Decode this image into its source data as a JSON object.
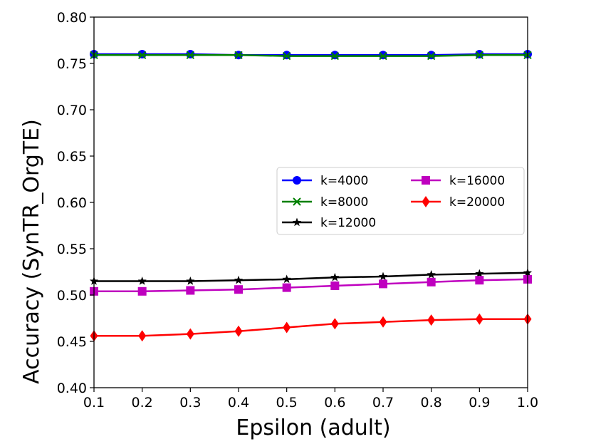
{
  "chart_data": {
    "type": "line",
    "xlabel": "Epsilon (adult)",
    "ylabel": "Accuracy  (SynTR_OrgTE)",
    "xlim": [
      0.1,
      1.0
    ],
    "ylim": [
      0.4,
      0.8
    ],
    "x": [
      0.1,
      0.2,
      0.3,
      0.4,
      0.5,
      0.6,
      0.7,
      0.8,
      0.9,
      1.0
    ],
    "x_ticks": [
      "0.1",
      "0.2",
      "0.3",
      "0.4",
      "0.5",
      "0.6",
      "0.7",
      "0.8",
      "0.9",
      "1.0"
    ],
    "y_ticks": [
      {
        "value": 0.4,
        "label": "0.40"
      },
      {
        "value": 0.45,
        "label": "0.45"
      },
      {
        "value": 0.5,
        "label": "0.50"
      },
      {
        "value": 0.55,
        "label": "0.55"
      },
      {
        "value": 0.6,
        "label": "0.60"
      },
      {
        "value": 0.65,
        "label": "0.65"
      },
      {
        "value": 0.7,
        "label": "0.70"
      },
      {
        "value": 0.75,
        "label": "0.75"
      },
      {
        "value": 0.8,
        "label": "0.80"
      }
    ],
    "grid": false,
    "legend_position": "center-right",
    "series": [
      {
        "name": "k=4000",
        "color": "#0000ff",
        "marker": "circle",
        "values": [
          0.76,
          0.76,
          0.76,
          0.759,
          0.759,
          0.759,
          0.759,
          0.759,
          0.76,
          0.76
        ]
      },
      {
        "name": "k=8000",
        "color": "#008000",
        "marker": "x",
        "values": [
          0.759,
          0.759,
          0.759,
          0.759,
          0.758,
          0.758,
          0.758,
          0.758,
          0.759,
          0.759
        ]
      },
      {
        "name": "k=12000",
        "color": "#000000",
        "marker": "star",
        "values": [
          0.515,
          0.515,
          0.515,
          0.516,
          0.517,
          0.519,
          0.52,
          0.522,
          0.523,
          0.524
        ]
      },
      {
        "name": "k=16000",
        "color": "#bf00bf",
        "marker": "square",
        "values": [
          0.504,
          0.504,
          0.505,
          0.506,
          0.508,
          0.51,
          0.512,
          0.514,
          0.516,
          0.517
        ]
      },
      {
        "name": "k=20000",
        "color": "#ff0000",
        "marker": "diamond",
        "values": [
          0.456,
          0.456,
          0.458,
          0.461,
          0.465,
          0.469,
          0.471,
          0.473,
          0.474,
          0.474
        ]
      }
    ]
  }
}
